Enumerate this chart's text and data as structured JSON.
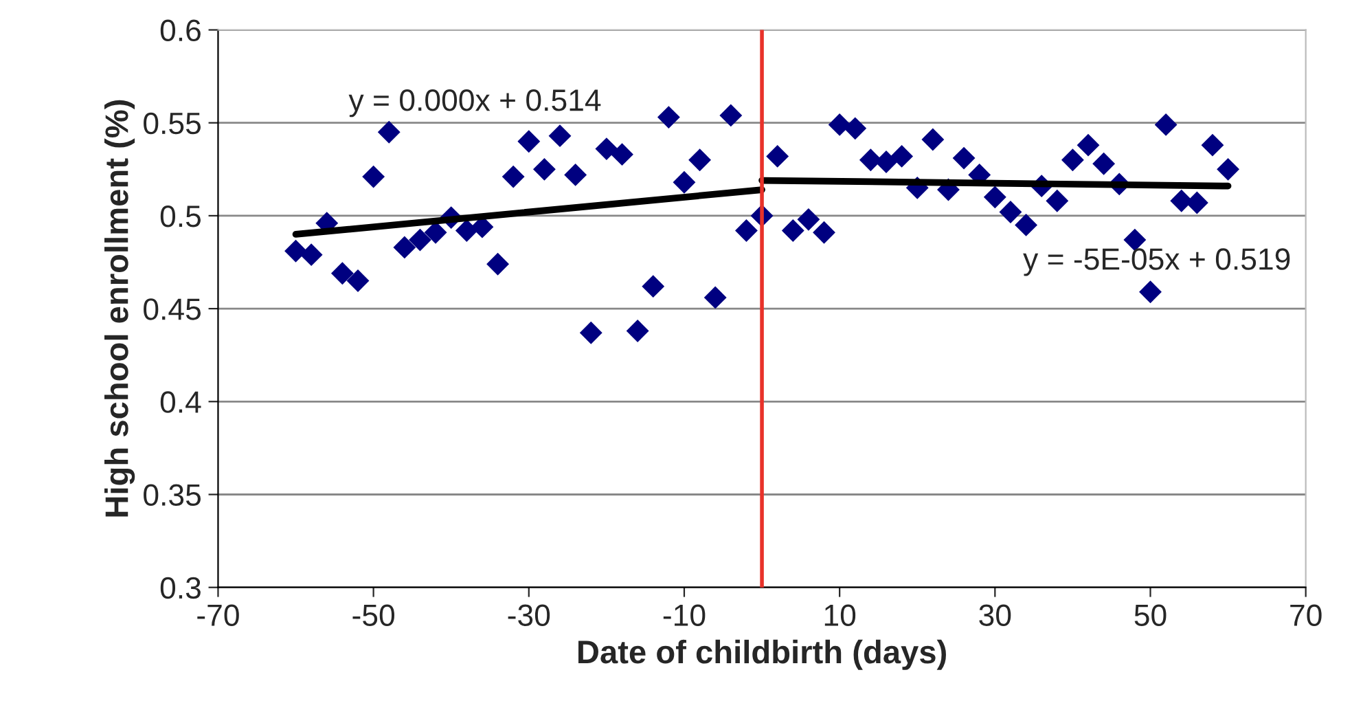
{
  "chart_data": {
    "type": "scatter",
    "xlabel": "Date of childbirth (days)",
    "ylabel": "High school enrollment (%)",
    "xlim": [
      -70,
      70
    ],
    "xticks": [
      -70,
      -50,
      -30,
      -10,
      10,
      30,
      50,
      70
    ],
    "ylim": [
      0.3,
      0.6
    ],
    "yticks": [
      0.3,
      0.35,
      0.4,
      0.45,
      0.5,
      0.55,
      0.6
    ],
    "grid": "y",
    "series": [
      {
        "marker": "diamond",
        "color": "#000080",
        "x": [
          -60,
          -58,
          -56,
          -54,
          -52,
          -50,
          -48,
          -46,
          -44,
          -42,
          -40,
          -38,
          -36,
          -34,
          -32,
          -30,
          -28,
          -26,
          -24,
          -22,
          -20,
          -18,
          -16,
          -14,
          -12,
          -10,
          -8,
          -6,
          -4,
          -2,
          0,
          2,
          4,
          6,
          8,
          10,
          12,
          14,
          16,
          18,
          20,
          22,
          24,
          26,
          28,
          30,
          32,
          34,
          36,
          38,
          40,
          42,
          44,
          46,
          48,
          50,
          52,
          54,
          56,
          58,
          60
        ],
        "values": [
          0.481,
          0.479,
          0.496,
          0.469,
          0.465,
          0.521,
          0.545,
          0.483,
          0.487,
          0.491,
          0.499,
          0.492,
          0.494,
          0.474,
          0.521,
          0.54,
          0.525,
          0.543,
          0.522,
          0.437,
          0.536,
          0.533,
          0.438,
          0.462,
          0.553,
          0.518,
          0.53,
          0.456,
          0.554,
          0.492,
          0.5,
          0.532,
          0.492,
          0.498,
          0.491,
          0.549,
          0.547,
          0.53,
          0.529,
          0.532,
          0.515,
          0.541,
          0.514,
          0.531,
          0.522,
          0.51,
          0.502,
          0.495,
          0.516,
          0.508,
          0.53,
          0.538,
          0.528,
          0.517,
          0.487,
          0.459,
          0.549,
          0.508,
          0.507,
          0.538,
          0.525
        ]
      },
      {
        "type": "line",
        "marker": "none",
        "color": "#000000",
        "x": [
          -60,
          0
        ],
        "values": [
          0.49,
          0.514
        ]
      },
      {
        "type": "line",
        "marker": "none",
        "color": "#000000",
        "x": [
          0,
          60
        ],
        "values": [
          0.519,
          0.516
        ]
      }
    ],
    "ref_lines": [
      {
        "axis": "x",
        "value": 0,
        "color": "#e8322a"
      }
    ],
    "annotations": [
      "y = 0.000x + 0.514",
      "y = -5E-05x + 0.519"
    ]
  }
}
